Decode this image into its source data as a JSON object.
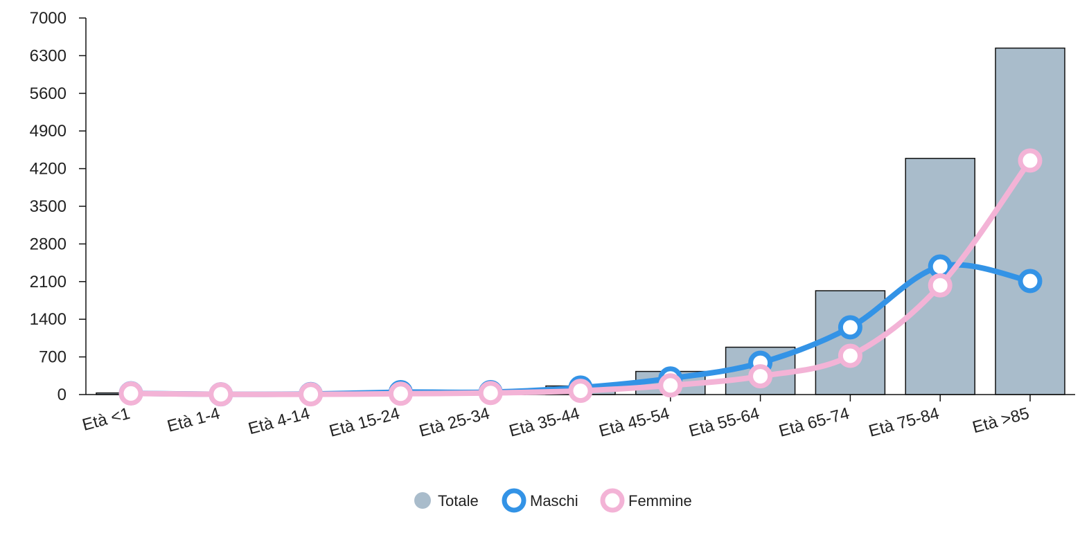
{
  "chart_data": {
    "type": "bar",
    "categories": [
      "Età <1",
      "Età 1-4",
      "Età 4-14",
      "Età 15-24",
      "Età 25-34",
      "Età 35-44",
      "Età 45-54",
      "Età 55-64",
      "Età 65-74",
      "Età 75-84",
      "Età >85"
    ],
    "ylim": [
      0,
      7000
    ],
    "yticks": [
      0,
      700,
      1400,
      2100,
      2800,
      3500,
      4200,
      4900,
      5600,
      6300,
      7000
    ],
    "series": [
      {
        "name": "Totale",
        "type": "bar",
        "color": "#a9bccb",
        "values": [
          30,
          10,
          15,
          40,
          60,
          160,
          430,
          880,
          1930,
          4390,
          6440
        ]
      },
      {
        "name": "Maschi",
        "type": "line",
        "color": "#3393e6",
        "values": [
          25,
          5,
          10,
          45,
          45,
          130,
          300,
          590,
          1250,
          2380,
          2110
        ]
      },
      {
        "name": "Femmine",
        "type": "line",
        "color": "#f3b3d6",
        "values": [
          20,
          5,
          5,
          15,
          30,
          70,
          170,
          340,
          720,
          2030,
          4350
        ]
      }
    ],
    "legend": "bottom-center",
    "grid": false
  }
}
